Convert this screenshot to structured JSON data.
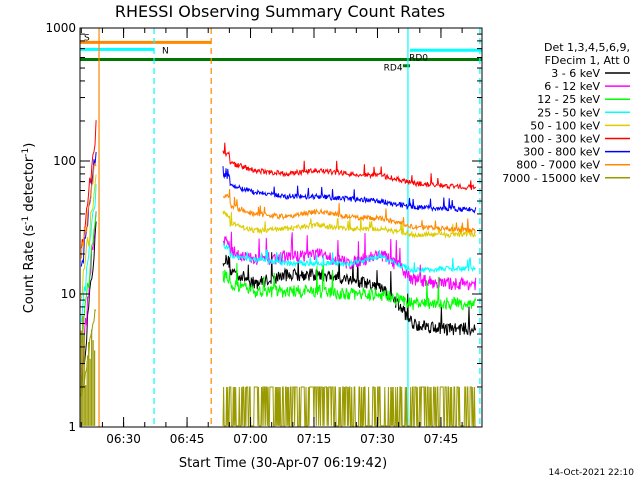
{
  "chart_data": {
    "type": "line",
    "title": "RHESSI Observing Summary Count Rates",
    "xlabel": "Start Time (30-Apr-07 06:19:42)",
    "ylabel_main": "Count Rate (s",
    "ylabel_sup1": "-1",
    "ylabel_mid": " detector",
    "ylabel_sup2": "-1",
    "ylabel_end": ")",
    "yscale": "log",
    "ylim": [
      1,
      1000
    ],
    "xlim_minutes": [
      0,
      95
    ],
    "y_ticks": [
      {
        "value": 1,
        "label": "1"
      },
      {
        "value": 10,
        "label": "10"
      },
      {
        "value": 100,
        "label": "100"
      },
      {
        "value": 1000,
        "label": "1000"
      }
    ],
    "x_ticks": [
      {
        "value": 10.3,
        "label": "06:30"
      },
      {
        "value": 25.3,
        "label": "06:45"
      },
      {
        "value": 40.3,
        "label": "07:00"
      },
      {
        "value": 55.3,
        "label": "07:15"
      },
      {
        "value": 70.3,
        "label": "07:30"
      },
      {
        "value": 85.3,
        "label": "07:45"
      }
    ],
    "legend_header": [
      "Det 1,3,4,5,6,9,",
      "FDecim 1, Att 0"
    ],
    "series": [
      {
        "name": "3 - 6 keV",
        "color": "#000000",
        "a": [
          2,
          30
        ],
        "b": [
          16,
          12,
          14,
          14,
          13,
          11,
          6,
          5.5,
          5.5
        ]
      },
      {
        "name": "6 - 12 keV",
        "color": "#ff00ff",
        "a": [
          2.5,
          45
        ],
        "b": [
          22,
          18,
          19,
          20,
          17,
          20,
          13,
          12,
          12
        ]
      },
      {
        "name": "12 - 25 keV",
        "color": "#00ff00",
        "a": [
          4,
          40
        ],
        "b": [
          12,
          10.5,
          10.5,
          10.5,
          10,
          10,
          8.5,
          8.5,
          8.5
        ]
      },
      {
        "name": "25 - 50 keV",
        "color": "#00ffff",
        "a": [
          6,
          60
        ],
        "b": [
          20,
          18,
          17,
          17,
          17,
          19,
          15,
          15.5,
          15.5
        ]
      },
      {
        "name": "50 - 100 keV",
        "color": "#ddcc00",
        "a": [
          10,
          75
        ],
        "b": [
          35,
          30,
          31,
          33,
          31,
          31,
          28,
          28,
          28
        ]
      },
      {
        "name": "100 - 300 keV",
        "color": "#ff0000",
        "a": [
          20,
          180
        ],
        "b": [
          100,
          85,
          80,
          85,
          80,
          78,
          68,
          65,
          63
        ]
      },
      {
        "name": "300 - 800 keV",
        "color": "#0000ff",
        "a": [
          15,
          120
        ],
        "b": [
          68,
          58,
          54,
          54,
          52,
          50,
          45,
          44,
          43
        ]
      },
      {
        "name": "800 - 7000 keV",
        "color": "#ff8800",
        "a": [
          20,
          100
        ],
        "b": [
          48,
          40,
          38,
          42,
          38,
          37,
          32,
          31,
          30
        ]
      },
      {
        "name": "7000 - 15000 keV",
        "color": "#999900",
        "a": [
          1.5,
          8
        ],
        "b": [
          1.5,
          2,
          1.5,
          2,
          2,
          1.5,
          1.5,
          2,
          1.5
        ]
      }
    ],
    "flags": [
      {
        "label": "S",
        "color": "#ff8800",
        "start": 0,
        "end": 31,
        "value": 780
      },
      {
        "label": "N",
        "color": "#00ffff",
        "start": 0,
        "end": 17.5,
        "value": 690
      },
      {
        "label": "RD4",
        "color": "#007700",
        "start": 0,
        "end": 95,
        "value": 580
      },
      {
        "label": "RD0",
        "color": "#00ffff",
        "start": 78,
        "end": 95,
        "value": 680
      }
    ],
    "vlines": [
      {
        "value": 4.5,
        "color": "#ff8800",
        "style": "solid"
      },
      {
        "value": 17.5,
        "color": "#00ffff",
        "style": "dashed"
      },
      {
        "value": 31,
        "color": "#ff8800",
        "style": "dashed"
      },
      {
        "value": 77.5,
        "color": "#00ffff",
        "style": "solid"
      },
      {
        "value": 94.5,
        "color": "#00ffff",
        "style": "dashed"
      }
    ]
  },
  "footer": {
    "date_stamp": "14-Oct-2021 22:10"
  }
}
